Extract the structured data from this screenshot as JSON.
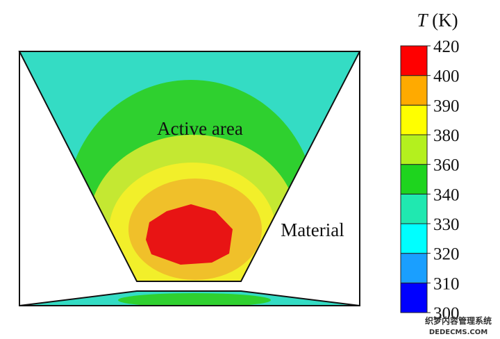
{
  "labels": {
    "active_area": "Active area",
    "material": "Material"
  },
  "colorbar": {
    "title_symbol": "T",
    "title_unit": "(K)",
    "ticks": [
      300,
      310,
      320,
      330,
      340,
      360,
      380,
      390,
      400,
      420
    ],
    "colors": [
      "#0000ff",
      "#1a9fff",
      "#00ffff",
      "#20e8b0",
      "#1ed41e",
      "#b4f01e",
      "#ffff00",
      "#ffaa00",
      "#ff0000"
    ]
  },
  "watermark": {
    "text": "织梦内容管理系统",
    "url": "DEDECMS.COM"
  }
}
